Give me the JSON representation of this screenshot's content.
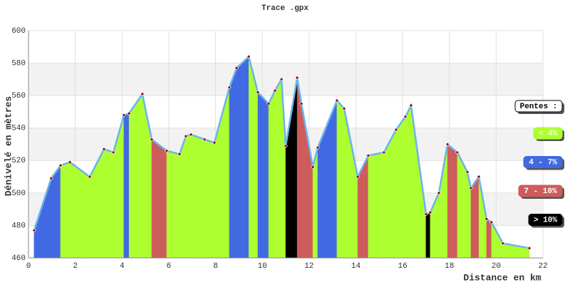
{
  "chart_data": {
    "type": "profile",
    "title": "Trace .gpx",
    "x_label": "Distance en km",
    "y_label": "Dénivelé en mètres",
    "x": [
      0.24,
      0.97,
      1.37,
      1.77,
      2.62,
      3.23,
      3.63,
      4.08,
      4.3,
      4.87,
      5.27,
      5.91,
      6.46,
      6.73,
      6.95,
      7.53,
      7.95,
      8.59,
      8.9,
      9.42,
      9.81,
      10.27,
      10.54,
      10.82,
      11.0,
      11.49,
      11.67,
      12.16,
      12.37,
      13.19,
      13.5,
      14.08,
      14.53,
      15.2,
      15.72,
      16.12,
      16.36,
      17.0,
      17.18,
      17.55,
      17.92,
      18.34,
      18.77,
      18.92,
      19.26,
      19.59,
      19.8,
      20.29,
      21.42
    ],
    "values": [
      477,
      509,
      517,
      519,
      510,
      527,
      525,
      548,
      549,
      561,
      533,
      526,
      524,
      535,
      536,
      533,
      531,
      565,
      577,
      584,
      562,
      555,
      563,
      570,
      529,
      571,
      555,
      516,
      528,
      557,
      552,
      510,
      523,
      525,
      539,
      547,
      554,
      487,
      488,
      500,
      530,
      525,
      513,
      503,
      510,
      484,
      482,
      469,
      466
    ],
    "segment_colors": [
      "#4169e1",
      "#4169e1",
      "#adff2f",
      "#adff2f",
      "#adff2f",
      "#adff2f",
      "#adff2f",
      "#4169e1",
      "#adff2f",
      "#adff2f",
      "#cd5c5c",
      "#adff2f",
      "#adff2f",
      "#adff2f",
      "#adff2f",
      "#adff2f",
      "#adff2f",
      "#4169e1",
      "#4169e1",
      "#adff2f",
      "#4169e1",
      "#adff2f",
      "#adff2f",
      "#adff2f",
      "#000000",
      "#cd5c5c",
      "#cd5c5c",
      "#adff2f",
      "#4169e1",
      "#adff2f",
      "#adff2f",
      "#cd5c5c",
      "#adff2f",
      "#adff2f",
      "#adff2f",
      "#adff2f",
      "#adff2f",
      "#000000",
      "#adff2f",
      "#adff2f",
      "#cd5c5c",
      "#adff2f",
      "#adff2f",
      "#cd5c5c",
      "#adff2f",
      "#cd5c5c",
      "#adff2f",
      "#adff2f"
    ],
    "line_color": "#6ab4ec",
    "xlim": [
      0,
      22
    ],
    "xticks": [
      0,
      2,
      4,
      6,
      8,
      10,
      12,
      14,
      16,
      18,
      20,
      22
    ],
    "ylim": [
      460,
      600
    ],
    "yticks": [
      460,
      480,
      500,
      520,
      540,
      560,
      580,
      600
    ],
    "grid": true,
    "legend_title": "Pentes :",
    "legend": [
      {
        "name": "< 4%",
        "color": "#adff2f"
      },
      {
        "name": "4 - 7%",
        "color": "#4169e1"
      },
      {
        "name": "7 - 10%",
        "color": "#cd5c5c"
      },
      {
        "name": "> 10%",
        "color": "#000000"
      }
    ]
  }
}
